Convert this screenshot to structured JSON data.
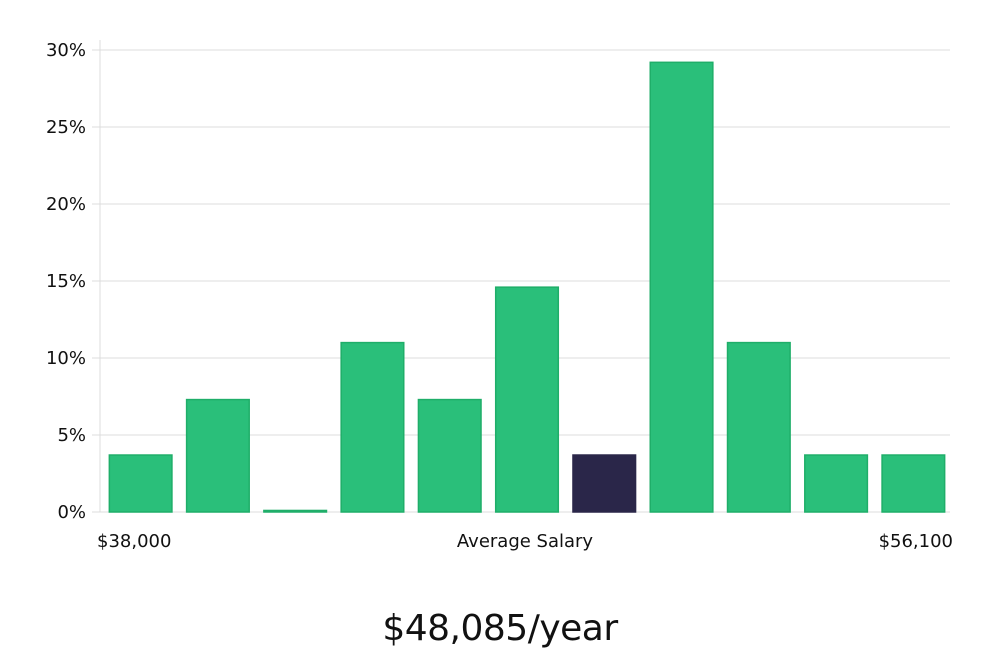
{
  "chart_data": {
    "type": "bar",
    "title": "",
    "xlabel": "Average Salary",
    "ylabel": "",
    "x_min_label": "$38,000",
    "x_max_label": "$56,100",
    "ylim": [
      0,
      30
    ],
    "yticks": [
      0,
      5,
      10,
      15,
      20,
      25,
      30
    ],
    "ytick_labels": [
      "0%",
      "5%",
      "10%",
      "15%",
      "20%",
      "25%",
      "30%"
    ],
    "grid": true,
    "values": [
      3.7,
      7.3,
      0.1,
      11.0,
      7.3,
      14.6,
      3.7,
      29.2,
      11.0,
      3.7,
      3.7
    ],
    "highlight_index": 6,
    "colors": {
      "bar": "#2abf7a",
      "bar_border": "#1fae69",
      "highlight": "#2a2649"
    }
  },
  "summary": {
    "salary_text": "$48,085/year"
  }
}
